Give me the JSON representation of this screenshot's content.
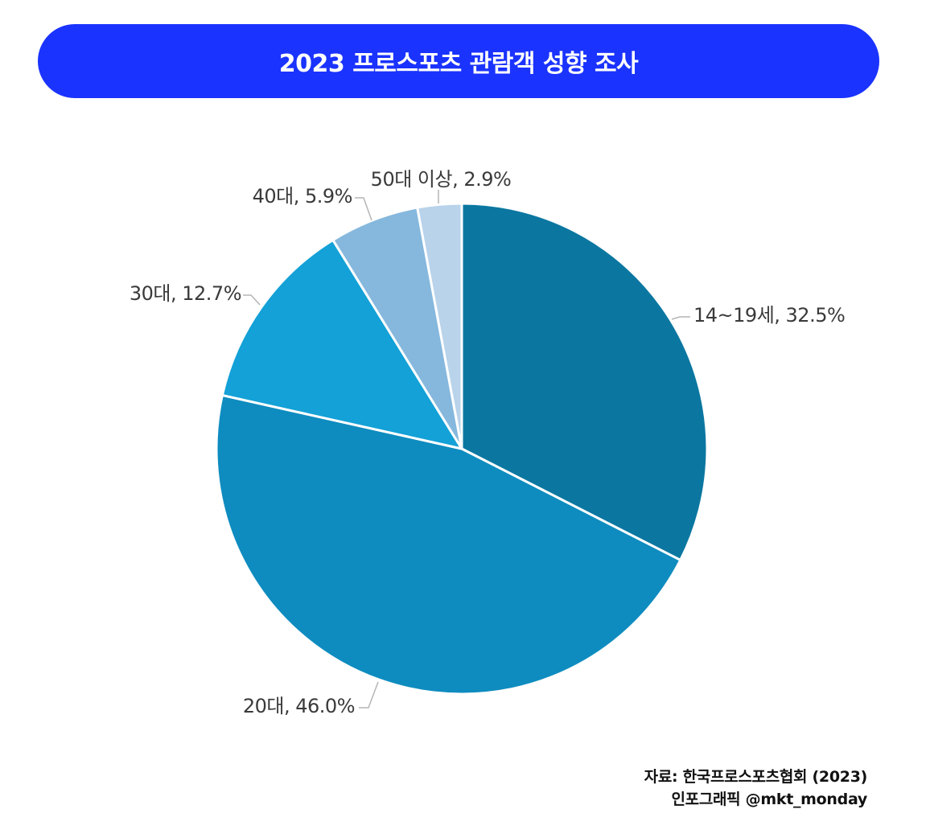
{
  "chart_data": {
    "type": "pie",
    "title": "2023 프로스포츠 관람객 성향 조사",
    "slices": [
      {
        "name": "14~19세",
        "value": 32.5,
        "label": "14~19세, 32.5%",
        "color": "#0b77a1"
      },
      {
        "name": "20대",
        "value": 46.0,
        "label": "20대, 46.0%",
        "color": "#0e8cbf"
      },
      {
        "name": "30대",
        "value": 12.7,
        "label": "30대, 12.7%",
        "color": "#13a1d7"
      },
      {
        "name": "40대",
        "value": 5.9,
        "label": "40대, 5.9%",
        "color": "#86b8dd"
      },
      {
        "name": "50대 이상",
        "value": 2.9,
        "label": "50대 이상, 2.9%",
        "color": "#b8d3ea"
      }
    ],
    "start": "12 o'clock",
    "direction": "clockwise"
  },
  "source": {
    "line1": "자료: 한국프로스포츠협회 (2023)",
    "line2": "인포그래픽 @mkt_monday"
  }
}
